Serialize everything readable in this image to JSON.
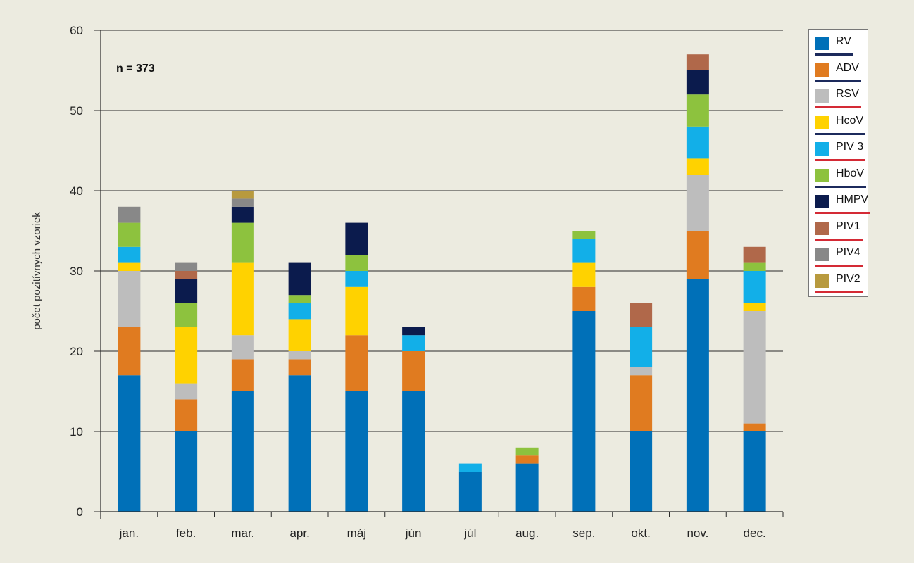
{
  "chart_data": {
    "type": "bar",
    "stacked": true,
    "annotation": "n = 373",
    "ylabel": "počet pozitívnych vzoriek",
    "xlabel": "",
    "ylim": [
      0,
      60
    ],
    "yticks": [
      0,
      10,
      20,
      30,
      40,
      50,
      60
    ],
    "grid": true,
    "legend_position": "right",
    "categories": [
      "jan.",
      "feb.",
      "mar.",
      "apr.",
      "máj",
      "jún",
      "júl",
      "aug.",
      "sep.",
      "okt.",
      "nov.",
      "dec."
    ],
    "series": [
      {
        "name": "RV",
        "color": "#0070b8",
        "underline": "#1c2a5c",
        "values": [
          17,
          10,
          15,
          17,
          15,
          15,
          5,
          6,
          25,
          10,
          29,
          10
        ]
      },
      {
        "name": "ADV",
        "color": "#e07b20",
        "underline": "#1c2a5c",
        "values": [
          6,
          4,
          4,
          2,
          7,
          5,
          0,
          1,
          3,
          7,
          6,
          1
        ]
      },
      {
        "name": "RSV",
        "color": "#bdbdbd",
        "underline": "#d42a35",
        "values": [
          7,
          2,
          3,
          1,
          0,
          0,
          0,
          0,
          0,
          1,
          7,
          14
        ]
      },
      {
        "name": "HcoV",
        "color": "#ffd200",
        "underline": "#1c2a5c",
        "values": [
          1,
          7,
          9,
          4,
          6,
          0,
          0,
          0,
          3,
          0,
          2,
          1
        ]
      },
      {
        "name": "PIV 3",
        "color": "#12afe8",
        "underline": "#d42a35",
        "values": [
          2,
          0,
          0,
          2,
          2,
          2,
          1,
          0,
          3,
          5,
          4,
          4
        ]
      },
      {
        "name": "HboV",
        "color": "#8dc23e",
        "underline": "#1c2a5c",
        "values": [
          3,
          3,
          5,
          1,
          2,
          0,
          0,
          1,
          1,
          0,
          4,
          1
        ]
      },
      {
        "name": "HMPV",
        "color": "#0b1b4d",
        "underline": "#d42a35",
        "values": [
          0,
          3,
          2,
          4,
          4,
          1,
          0,
          0,
          0,
          0,
          3,
          0
        ]
      },
      {
        "name": "PIV1",
        "color": "#b0684a",
        "underline": "#d42a35",
        "values": [
          0,
          1,
          0,
          0,
          0,
          0,
          0,
          0,
          0,
          3,
          2,
          2
        ]
      },
      {
        "name": "PIV4",
        "color": "#888888",
        "underline": "#d42a35",
        "values": [
          2,
          1,
          1,
          0,
          0,
          0,
          0,
          0,
          0,
          0,
          0,
          0
        ]
      },
      {
        "name": "PIV2",
        "color": "#b89a3e",
        "underline": "#d42a35",
        "values": [
          0,
          0,
          1,
          0,
          0,
          0,
          0,
          0,
          0,
          0,
          0,
          0
        ]
      }
    ]
  }
}
